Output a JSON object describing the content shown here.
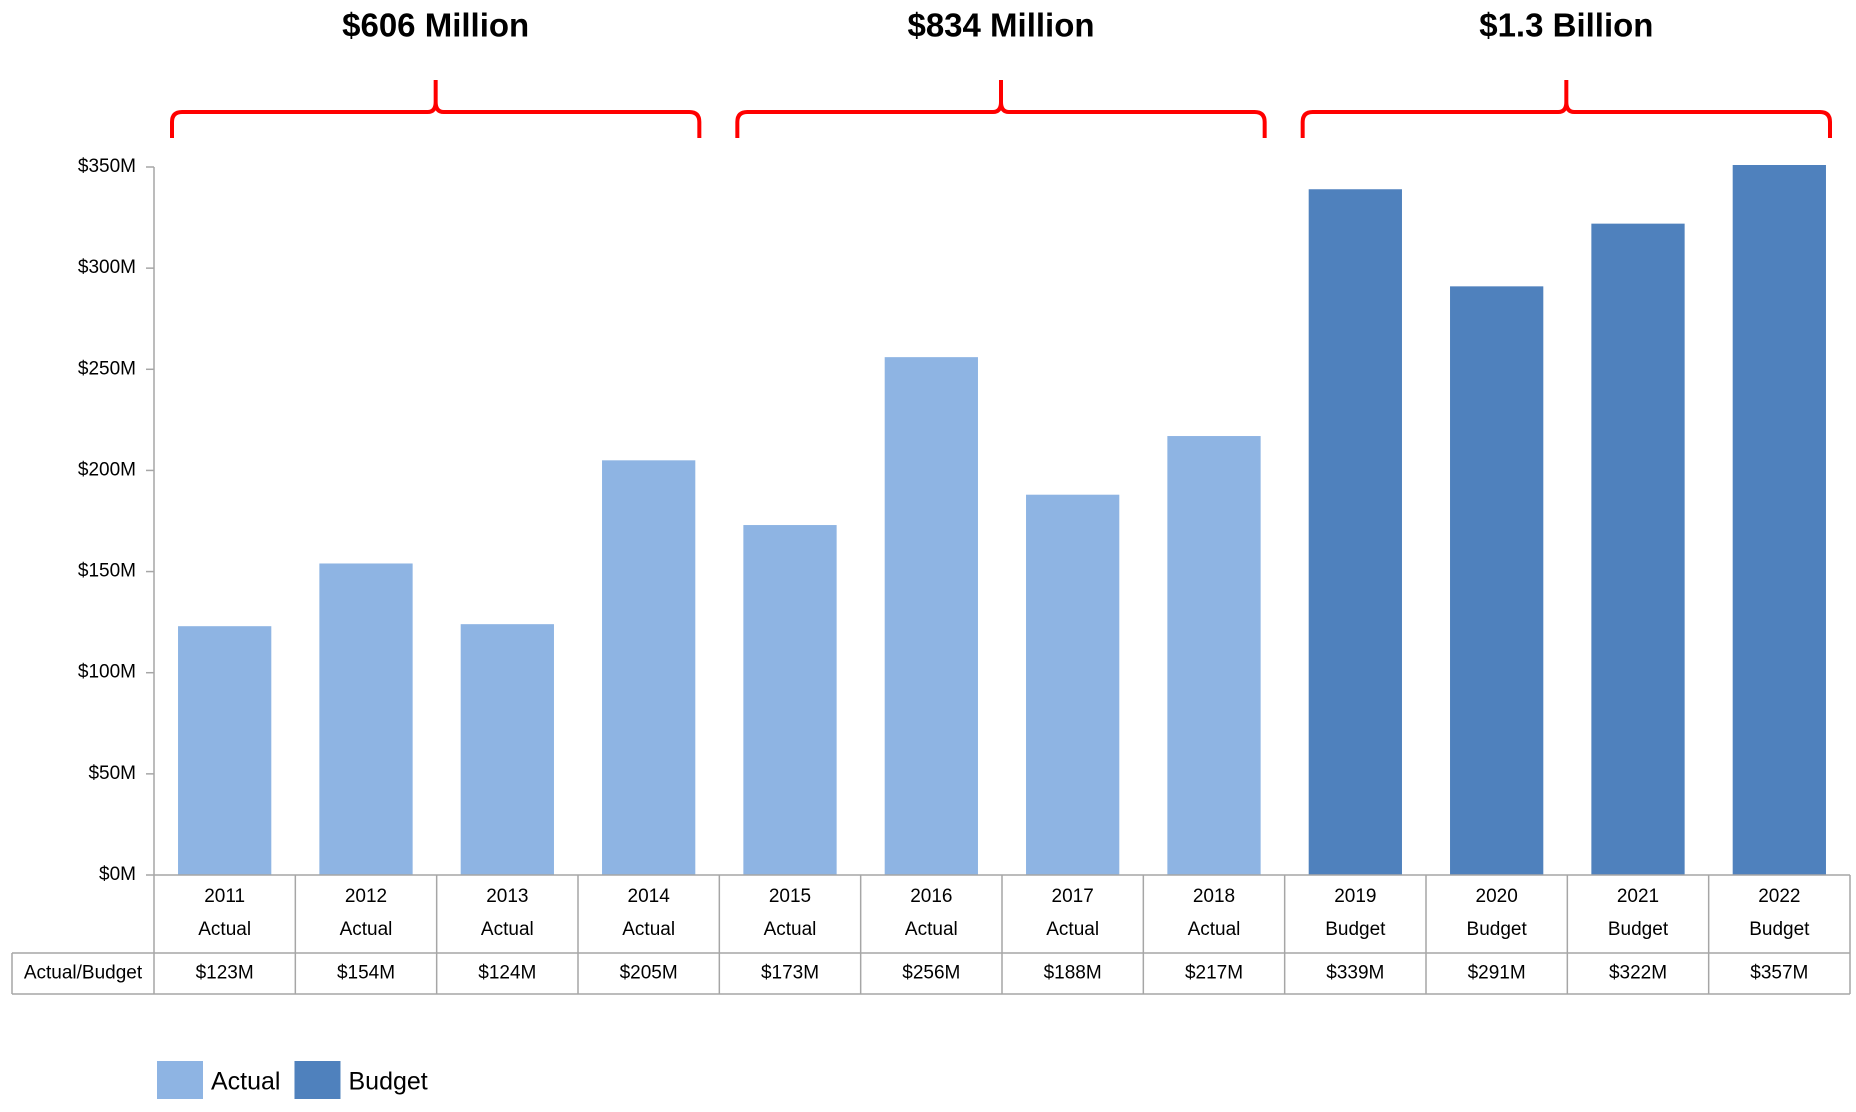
{
  "chart_data": {
    "type": "bar",
    "categories": [
      "2011",
      "2012",
      "2013",
      "2014",
      "2015",
      "2016",
      "2017",
      "2018",
      "2019",
      "2020",
      "2021",
      "2022"
    ],
    "category_sublabels": [
      "Actual",
      "Actual",
      "Actual",
      "Actual",
      "Actual",
      "Actual",
      "Actual",
      "Actual",
      "Budget",
      "Budget",
      "Budget",
      "Budget"
    ],
    "series": [
      {
        "name": "Actual",
        "color": "#8eb4e3",
        "values": [
          123,
          154,
          124,
          205,
          173,
          256,
          188,
          217,
          null,
          null,
          null,
          null
        ],
        "value_labels": [
          "$123M",
          "$154M",
          "$124M",
          "$205M",
          "$173M",
          "$256M",
          "$188M",
          "$217M",
          null,
          null,
          null,
          null
        ]
      },
      {
        "name": "Budget",
        "color": "#4f81bd",
        "values": [
          null,
          null,
          null,
          null,
          null,
          null,
          null,
          null,
          339,
          291,
          322,
          357
        ],
        "value_labels": [
          null,
          null,
          null,
          null,
          null,
          null,
          null,
          null,
          "$339M",
          "$291M",
          "$322M",
          "$357M"
        ]
      }
    ],
    "table_row_label": "Actual/Budget",
    "ylim": [
      0,
      350
    ],
    "yticks": [
      {
        "value": 0,
        "label": "$0M"
      },
      {
        "value": 50,
        "label": "$50M"
      },
      {
        "value": 100,
        "label": "$100M"
      },
      {
        "value": 150,
        "label": "$150M"
      },
      {
        "value": 200,
        "label": "$200M"
      },
      {
        "value": 250,
        "label": "$250M"
      },
      {
        "value": 300,
        "label": "$300M"
      },
      {
        "value": 350,
        "label": "$350M"
      }
    ],
    "groups": [
      {
        "label": "$606 Million",
        "start": "2011",
        "end": "2014"
      },
      {
        "label": "$834 Million",
        "start": "2015",
        "end": "2018"
      },
      {
        "label": "$1.3 Billion",
        "start": "2019",
        "end": "2022"
      }
    ],
    "bracket_color": "#ff0000",
    "legend": "bottom-left"
  }
}
